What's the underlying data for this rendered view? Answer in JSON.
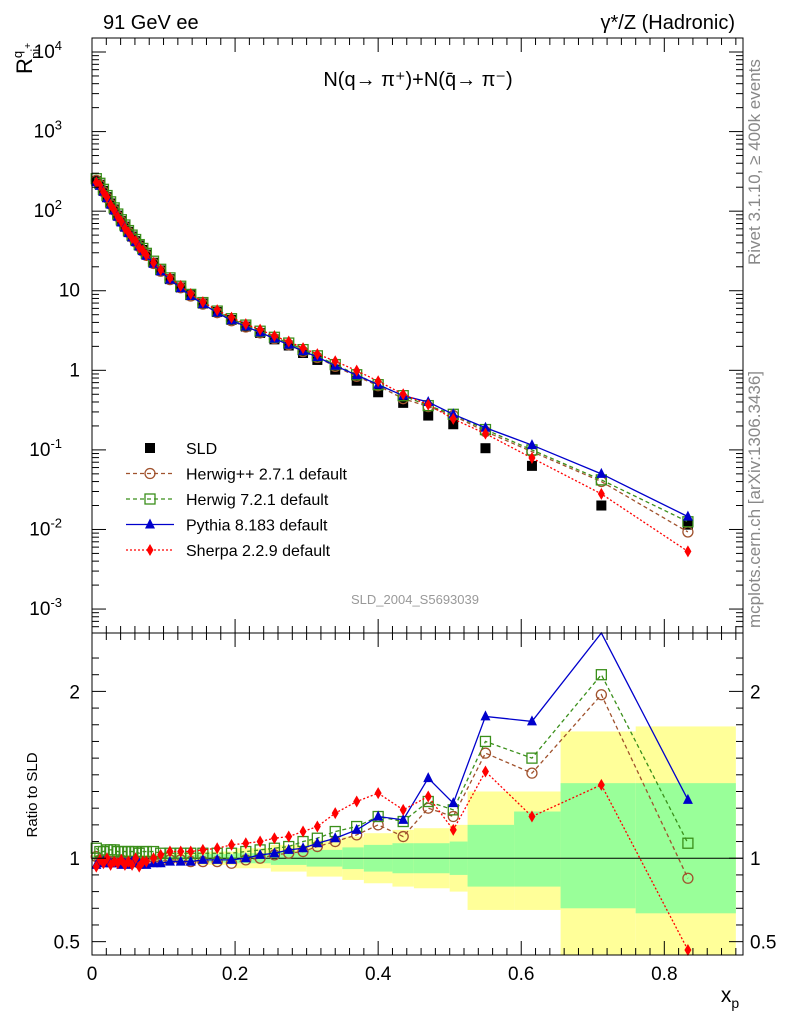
{
  "header": {
    "left": "91 GeV ee",
    "right": "γ*/Z (Hadronic)"
  },
  "side_text": {
    "top": "Rivet 3.1.10, ≥ 400k events",
    "bottom": "mcplots.cern.ch [arXiv:1306.3436]"
  },
  "analysis_id": "SLD_2004_S5693039",
  "upper_title": "N(q→ π⁺)+N(q̄→ π⁻)",
  "ylabel_upper": "R^q_pi+",
  "ylabel_lower": "Ratio to SLD",
  "xlabel": "x_p",
  "chart_data": [
    {
      "type": "scatter",
      "panel": "main",
      "yscale": "log",
      "xlim": [
        0,
        0.91
      ],
      "ylim": [
        0.0005,
        15000
      ],
      "x_ticks": [
        "0",
        "0.2",
        "0.4",
        "0.6",
        "0.8"
      ],
      "y_ticks": [
        "10^-3",
        "10^-2",
        "10^-1",
        "1",
        "10",
        "10^2",
        "10^3",
        "10^4"
      ],
      "legend_position": "lower-left",
      "series": [
        {
          "name": "SLD",
          "color": "#000000",
          "marker": "square-filled",
          "x": [
            0.006,
            0.011,
            0.016,
            0.021,
            0.026,
            0.031,
            0.036,
            0.041,
            0.046,
            0.051,
            0.056,
            0.061,
            0.066,
            0.071,
            0.076,
            0.086,
            0.096,
            0.109,
            0.124,
            0.138,
            0.155,
            0.175,
            0.195,
            0.215,
            0.235,
            0.255,
            0.275,
            0.295,
            0.315,
            0.34,
            0.37,
            0.4,
            0.435,
            0.47,
            0.505,
            0.55,
            0.615,
            0.712,
            0.833
          ],
          "y": [
            240,
            215,
            180,
            150,
            125,
            105,
            88,
            75,
            64,
            55,
            48,
            42,
            37,
            32.5,
            28.5,
            22.5,
            18,
            14,
            11,
            8.8,
            6.9,
            5.4,
            4.3,
            3.55,
            2.95,
            2.45,
            2.05,
            1.65,
            1.35,
            1.02,
            0.74,
            0.53,
            0.39,
            0.27,
            0.21,
            0.105,
            0.063,
            0.02,
            0.0115
          ]
        },
        {
          "name": "Herwig++ 2.7.1 default",
          "color": "#A0522D",
          "marker": "circle-open",
          "line": "dashed",
          "x": [
            0.006,
            0.011,
            0.016,
            0.021,
            0.026,
            0.031,
            0.036,
            0.041,
            0.046,
            0.051,
            0.056,
            0.061,
            0.066,
            0.071,
            0.076,
            0.086,
            0.096,
            0.109,
            0.124,
            0.138,
            0.155,
            0.175,
            0.195,
            0.215,
            0.235,
            0.255,
            0.275,
            0.295,
            0.315,
            0.34,
            0.37,
            0.4,
            0.435,
            0.47,
            0.505,
            0.55,
            0.615,
            0.712,
            0.833
          ],
          "y": [
            244,
            213,
            176,
            147,
            122,
            103,
            86,
            74,
            63,
            54,
            47,
            41,
            36,
            31.5,
            27.8,
            22.0,
            17.6,
            13.8,
            10.9,
            8.6,
            6.8,
            5.3,
            4.2,
            3.5,
            2.95,
            2.5,
            2.1,
            1.72,
            1.45,
            1.12,
            0.84,
            0.64,
            0.44,
            0.35,
            0.27,
            0.17,
            0.095,
            0.04,
            0.0093
          ]
        },
        {
          "name": "Herwig 7.2.1 default",
          "color": "#3A8F1A",
          "marker": "square-open",
          "line": "dashed",
          "x": [
            0.006,
            0.011,
            0.016,
            0.021,
            0.026,
            0.031,
            0.036,
            0.041,
            0.046,
            0.051,
            0.056,
            0.061,
            0.066,
            0.071,
            0.076,
            0.086,
            0.096,
            0.109,
            0.124,
            0.138,
            0.155,
            0.175,
            0.195,
            0.215,
            0.235,
            0.255,
            0.275,
            0.295,
            0.315,
            0.34,
            0.37,
            0.4,
            0.435,
            0.47,
            0.505,
            0.55,
            0.615,
            0.712,
            0.833
          ],
          "y": [
            256,
            224,
            188,
            157,
            131,
            110,
            92,
            78,
            67,
            57,
            50,
            44,
            38,
            34,
            29.5,
            23.5,
            18.6,
            14.5,
            11.4,
            9.0,
            7.1,
            5.55,
            4.45,
            3.7,
            3.1,
            2.6,
            2.2,
            1.82,
            1.52,
            1.18,
            0.88,
            0.66,
            0.48,
            0.36,
            0.28,
            0.18,
            0.1,
            0.042,
            0.0125
          ]
        },
        {
          "name": "Pythia 8.183 default",
          "color": "#0000CC",
          "marker": "triangle-filled",
          "line": "solid",
          "x": [
            0.006,
            0.011,
            0.016,
            0.021,
            0.026,
            0.031,
            0.036,
            0.041,
            0.046,
            0.051,
            0.056,
            0.061,
            0.066,
            0.071,
            0.076,
            0.086,
            0.096,
            0.109,
            0.124,
            0.138,
            0.155,
            0.175,
            0.195,
            0.215,
            0.235,
            0.255,
            0.275,
            0.295,
            0.315,
            0.34,
            0.37,
            0.4,
            0.435,
            0.47,
            0.505,
            0.55,
            0.615,
            0.712,
            0.833
          ],
          "y": [
            232,
            209,
            176,
            146,
            121,
            102,
            85,
            72,
            62,
            53,
            47,
            41,
            36,
            31.5,
            27.5,
            21.8,
            17.5,
            13.8,
            10.8,
            8.6,
            6.8,
            5.3,
            4.25,
            3.55,
            3.0,
            2.5,
            2.1,
            1.74,
            1.47,
            1.14,
            0.87,
            0.66,
            0.48,
            0.4,
            0.28,
            0.19,
            0.115,
            0.05,
            0.0145
          ]
        },
        {
          "name": "Sherpa 2.2.9 default",
          "color": "#FF0000",
          "marker": "diamond-filled",
          "line": "dotted",
          "x": [
            0.006,
            0.011,
            0.016,
            0.021,
            0.026,
            0.031,
            0.036,
            0.041,
            0.046,
            0.051,
            0.056,
            0.061,
            0.066,
            0.071,
            0.076,
            0.086,
            0.096,
            0.109,
            0.124,
            0.138,
            0.155,
            0.175,
            0.195,
            0.215,
            0.235,
            0.255,
            0.275,
            0.295,
            0.315,
            0.34,
            0.37,
            0.4,
            0.435,
            0.47,
            0.505,
            0.55,
            0.615,
            0.712,
            0.833
          ],
          "y": [
            230,
            212,
            174,
            150,
            120,
            103,
            85,
            74,
            61,
            54,
            46,
            42,
            35,
            32,
            28,
            22.5,
            18.3,
            14.5,
            11.5,
            9.1,
            7.2,
            5.7,
            4.6,
            3.8,
            3.25,
            2.7,
            2.3,
            1.9,
            1.6,
            1.3,
            0.99,
            0.73,
            0.5,
            0.37,
            0.245,
            0.16,
            0.079,
            0.028,
            0.0053
          ]
        }
      ]
    },
    {
      "type": "line",
      "panel": "ratio",
      "ylabel": "Ratio to SLD",
      "xlim": [
        0,
        0.91
      ],
      "ylim": [
        0.42,
        2.35
      ],
      "y_ticks": [
        "0.5",
        "1",
        "2"
      ],
      "bands": {
        "edges": [
          0.0,
          0.1,
          0.15,
          0.2,
          0.25,
          0.3,
          0.35,
          0.38,
          0.42,
          0.45,
          0.5,
          0.525,
          0.59,
          0.655,
          0.76,
          0.9
        ],
        "inner_lo": [
          0.985,
          0.98,
          0.975,
          0.97,
          0.96,
          0.95,
          0.935,
          0.92,
          0.91,
          0.91,
          0.9,
          0.83,
          0.83,
          0.7,
          0.67
        ],
        "inner_hi": [
          1.015,
          1.02,
          1.025,
          1.03,
          1.04,
          1.05,
          1.065,
          1.08,
          1.09,
          1.09,
          1.1,
          1.2,
          1.28,
          1.45,
          1.45
        ],
        "outer_lo": [
          0.98,
          0.97,
          0.96,
          0.94,
          0.92,
          0.89,
          0.87,
          0.85,
          0.83,
          0.82,
          0.8,
          0.69,
          0.69,
          0.4,
          0.4
        ],
        "outer_hi": [
          1.02,
          1.03,
          1.04,
          1.06,
          1.08,
          1.11,
          1.13,
          1.15,
          1.17,
          1.18,
          1.2,
          1.4,
          1.4,
          1.76,
          1.79
        ]
      },
      "series": [
        {
          "name": "Herwig++ 2.7.1 default",
          "color": "#A0522D",
          "marker": "circle-open",
          "line": "dashed",
          "x": [
            0.006,
            0.011,
            0.016,
            0.021,
            0.026,
            0.031,
            0.036,
            0.041,
            0.046,
            0.051,
            0.056,
            0.061,
            0.066,
            0.071,
            0.076,
            0.086,
            0.096,
            0.109,
            0.124,
            0.138,
            0.155,
            0.175,
            0.195,
            0.215,
            0.235,
            0.255,
            0.275,
            0.295,
            0.315,
            0.34,
            0.37,
            0.4,
            0.435,
            0.47,
            0.505,
            0.55,
            0.615,
            0.712,
            0.833
          ],
          "y": [
            1.01,
            0.99,
            0.98,
            0.98,
            0.98,
            0.98,
            0.98,
            0.99,
            0.98,
            0.98,
            0.98,
            0.98,
            0.97,
            0.97,
            0.98,
            0.98,
            0.98,
            0.99,
            0.99,
            0.98,
            0.98,
            0.98,
            0.97,
            0.99,
            1.0,
            1.02,
            1.03,
            1.04,
            1.07,
            1.1,
            1.14,
            1.2,
            1.13,
            1.3,
            1.25,
            1.63,
            1.51,
            1.98,
            0.88
          ]
        },
        {
          "name": "Herwig 7.2.1 default",
          "color": "#3A8F1A",
          "marker": "square-open",
          "line": "dashed",
          "x": [
            0.006,
            0.011,
            0.016,
            0.021,
            0.026,
            0.031,
            0.036,
            0.041,
            0.046,
            0.051,
            0.056,
            0.061,
            0.066,
            0.071,
            0.076,
            0.086,
            0.096,
            0.109,
            0.124,
            0.138,
            0.155,
            0.175,
            0.195,
            0.215,
            0.235,
            0.255,
            0.275,
            0.295,
            0.315,
            0.34,
            0.37,
            0.4,
            0.435,
            0.47,
            0.505,
            0.55,
            0.615,
            0.712,
            0.833
          ],
          "y": [
            1.06,
            1.04,
            1.04,
            1.05,
            1.05,
            1.05,
            1.04,
            1.04,
            1.04,
            1.04,
            1.04,
            1.04,
            1.03,
            1.04,
            1.04,
            1.04,
            1.03,
            1.03,
            1.03,
            1.03,
            1.03,
            1.03,
            1.03,
            1.04,
            1.05,
            1.06,
            1.07,
            1.1,
            1.12,
            1.16,
            1.19,
            1.25,
            1.22,
            1.34,
            1.29,
            1.7,
            1.6,
            2.1,
            1.09
          ]
        },
        {
          "name": "Pythia 8.183 default",
          "color": "#0000CC",
          "marker": "triangle-filled",
          "line": "solid",
          "x": [
            0.006,
            0.011,
            0.016,
            0.021,
            0.026,
            0.031,
            0.036,
            0.041,
            0.046,
            0.051,
            0.056,
            0.061,
            0.066,
            0.071,
            0.076,
            0.086,
            0.096,
            0.109,
            0.124,
            0.138,
            0.155,
            0.175,
            0.195,
            0.215,
            0.235,
            0.255,
            0.275,
            0.295,
            0.315,
            0.34,
            0.37,
            0.4,
            0.435,
            0.47,
            0.505,
            0.55,
            0.615,
            0.712,
            0.833
          ],
          "y": [
            0.96,
            0.97,
            0.98,
            0.97,
            0.97,
            0.97,
            0.97,
            0.96,
            0.97,
            0.96,
            0.98,
            0.98,
            0.97,
            0.97,
            0.96,
            0.97,
            0.97,
            0.98,
            0.98,
            0.98,
            0.99,
            0.99,
            0.99,
            1.0,
            1.02,
            1.03,
            1.05,
            1.06,
            1.09,
            1.12,
            1.17,
            1.25,
            1.23,
            1.48,
            1.33,
            1.85,
            1.82,
            2.45,
            1.35
          ]
        },
        {
          "name": "Sherpa 2.2.9 default",
          "color": "#FF0000",
          "marker": "diamond-filled",
          "line": "dotted",
          "x": [
            0.006,
            0.011,
            0.016,
            0.021,
            0.026,
            0.031,
            0.036,
            0.041,
            0.046,
            0.051,
            0.056,
            0.061,
            0.066,
            0.071,
            0.076,
            0.086,
            0.096,
            0.109,
            0.124,
            0.138,
            0.155,
            0.175,
            0.195,
            0.215,
            0.235,
            0.255,
            0.275,
            0.295,
            0.315,
            0.34,
            0.37,
            0.4,
            0.435,
            0.47,
            0.505,
            0.55,
            0.615,
            0.712,
            0.833
          ],
          "y": [
            0.95,
            0.99,
            0.97,
            1.0,
            0.96,
            0.98,
            0.97,
            0.99,
            0.96,
            0.98,
            0.96,
            1.0,
            0.95,
            0.98,
            0.98,
            1.0,
            1.02,
            1.04,
            1.04,
            1.04,
            1.05,
            1.06,
            1.08,
            1.09,
            1.1,
            1.12,
            1.13,
            1.16,
            1.19,
            1.27,
            1.34,
            1.39,
            1.29,
            1.37,
            1.17,
            1.52,
            1.25,
            1.44,
            0.45
          ]
        }
      ]
    }
  ]
}
